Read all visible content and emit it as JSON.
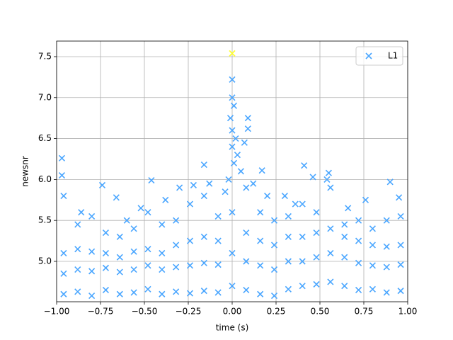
{
  "chart_data": {
    "type": "scatter",
    "xlabel": "time (s)",
    "ylabel": "newsnr",
    "xlim": [
      -1,
      1
    ],
    "ylim": [
      4.507,
      7.69
    ],
    "xticks": [
      {
        "value": -1,
        "label": "−1.00"
      },
      {
        "value": -0.75,
        "label": "−0.75"
      },
      {
        "value": -0.5,
        "label": "−0.50"
      },
      {
        "value": -0.25,
        "label": "−0.25"
      },
      {
        "value": 0,
        "label": "0.00"
      },
      {
        "value": 0.25,
        "label": "0.25"
      },
      {
        "value": 0.5,
        "label": "0.50"
      },
      {
        "value": 0.75,
        "label": "0.75"
      },
      {
        "value": 1,
        "label": "1.00"
      }
    ],
    "yticks": [
      {
        "value": 5,
        "label": "5.0"
      },
      {
        "value": 5.5,
        "label": "5.5"
      },
      {
        "value": 6,
        "label": "6.0"
      },
      {
        "value": 6.5,
        "label": "6.5"
      },
      {
        "value": 7,
        "label": "7.0"
      },
      {
        "value": 7.5,
        "label": "7.5"
      }
    ],
    "grid": true,
    "legend_loc": "upper right",
    "series": [
      {
        "name": "L1",
        "color": "#4aa6ff",
        "x": [
          -0.96,
          -0.96,
          -0.96,
          -0.96,
          -0.88,
          -0.88,
          -0.88,
          -0.88,
          -0.8,
          -0.8,
          -0.8,
          -0.8,
          -0.72,
          -0.72,
          -0.72,
          -0.72,
          -0.64,
          -0.64,
          -0.64,
          -0.64,
          -0.56,
          -0.56,
          -0.56,
          -0.56,
          -0.48,
          -0.48,
          -0.48,
          -0.48,
          -0.4,
          -0.4,
          -0.4,
          -0.4,
          -0.32,
          -0.32,
          -0.32,
          -0.32,
          -0.24,
          -0.24,
          -0.24,
          -0.24,
          -0.16,
          -0.16,
          -0.16,
          -0.16,
          -0.08,
          -0.08,
          -0.08,
          -0.08,
          0,
          0,
          0,
          0,
          0.08,
          0.08,
          0.08,
          0.08,
          0.16,
          0.16,
          0.16,
          0.16,
          0.24,
          0.24,
          0.24,
          0.24,
          0.32,
          0.32,
          0.32,
          0.32,
          0.4,
          0.4,
          0.4,
          0.4,
          0.48,
          0.48,
          0.48,
          0.48,
          0.56,
          0.56,
          0.56,
          0.56,
          0.64,
          0.64,
          0.64,
          0.64,
          0.72,
          0.72,
          0.72,
          0.72,
          0.8,
          0.8,
          0.8,
          0.8,
          0.88,
          0.88,
          0.88,
          0.88,
          0.96,
          0.96,
          0.96,
          0.96,
          -0.97,
          -0.97,
          -0.74,
          -0.66,
          -0.46,
          -0.38,
          -0.22,
          -0.16,
          -0.13,
          0,
          0,
          0.01,
          -0.01,
          0,
          0.02,
          0.01,
          -0.02,
          0.03,
          0.05,
          0.09,
          0.09,
          0.07,
          0.17,
          0.41,
          0.46,
          0.55,
          0.54,
          0.76,
          0.9,
          0.95,
          -0.3,
          -0.04,
          0.12,
          0.3,
          0.66,
          -0.86,
          -0.6,
          0.2,
          0.36,
          -0.52
        ],
        "values": [
          4.6,
          4.85,
          5.1,
          5.8,
          4.63,
          4.9,
          5.15,
          5.45,
          4.58,
          4.88,
          5.12,
          5.55,
          4.65,
          4.92,
          5.1,
          5.35,
          4.6,
          4.87,
          5.05,
          5.3,
          4.62,
          4.9,
          5.12,
          5.4,
          4.66,
          4.95,
          5.15,
          5.6,
          4.6,
          4.9,
          5.1,
          5.45,
          4.63,
          4.93,
          5.2,
          5.5,
          4.61,
          4.95,
          5.25,
          5.7,
          4.64,
          4.98,
          5.3,
          5.8,
          4.62,
          4.96,
          5.25,
          5.55,
          4.7,
          5.1,
          5.6,
          6.4,
          4.65,
          5,
          5.35,
          5.9,
          4.6,
          4.95,
          5.25,
          5.6,
          4.58,
          4.9,
          5.2,
          5.5,
          4.66,
          5,
          5.3,
          5.55,
          4.7,
          5,
          5.3,
          5.7,
          4.72,
          5.05,
          5.35,
          5.6,
          4.75,
          5.1,
          5.4,
          5.9,
          4.7,
          5.05,
          5.3,
          5.45,
          4.65,
          4.98,
          5.25,
          5.5,
          4.66,
          4.95,
          5.2,
          5.4,
          4.62,
          4.93,
          5.18,
          5.5,
          4.64,
          4.96,
          5.2,
          5.55,
          6.26,
          6.05,
          5.93,
          5.78,
          5.99,
          5.75,
          5.93,
          6.18,
          5.95,
          7.22,
          7,
          6.9,
          6.75,
          6.6,
          6.5,
          6.2,
          6,
          6.3,
          6.1,
          6.75,
          6.62,
          6.45,
          6.11,
          6.17,
          6.03,
          6.08,
          6,
          5.75,
          5.97,
          5.78,
          5.9,
          5.85,
          5.95,
          5.8,
          5.65,
          5.6,
          5.5,
          5.8,
          5.7,
          5.65
        ]
      }
    ],
    "highlight": {
      "x": 0,
      "y": 7.54,
      "color": "#ffff33"
    }
  }
}
